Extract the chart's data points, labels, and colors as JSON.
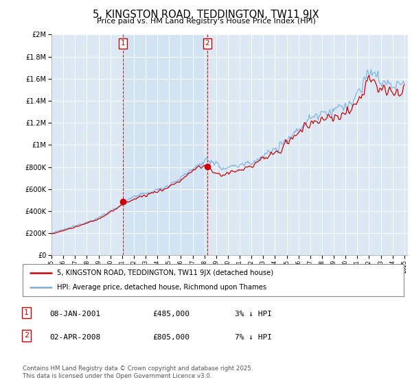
{
  "title": "5, KINGSTON ROAD, TEDDINGTON, TW11 9JX",
  "subtitle": "Price paid vs. HM Land Registry's House Price Index (HPI)",
  "ytick_values": [
    0,
    200000,
    400000,
    600000,
    800000,
    1000000,
    1200000,
    1400000,
    1600000,
    1800000,
    2000000
  ],
  "ylim": [
    0,
    2000000
  ],
  "year_start": 1995,
  "year_end": 2025,
  "hpi_color": "#7aade0",
  "price_color": "#cc0000",
  "marker1_date": 2001.05,
  "marker1_price": 485000,
  "marker1_label": "1",
  "marker2_date": 2008.25,
  "marker2_price": 805000,
  "marker2_label": "2",
  "vline_color": "#cc0000",
  "shade_color": "#dce9f5",
  "legend_label1": "5, KINGSTON ROAD, TEDDINGTON, TW11 9JX (detached house)",
  "legend_label2": "HPI: Average price, detached house, Richmond upon Thames",
  "table_row1": [
    "1",
    "08-JAN-2001",
    "£485,000",
    "3% ↓ HPI"
  ],
  "table_row2": [
    "2",
    "02-APR-2008",
    "£805,000",
    "7% ↓ HPI"
  ],
  "footnote": "Contains HM Land Registry data © Crown copyright and database right 2025.\nThis data is licensed under the Open Government Licence v3.0.",
  "background_color": "#dce9f5",
  "grid_color": "#ffffff"
}
